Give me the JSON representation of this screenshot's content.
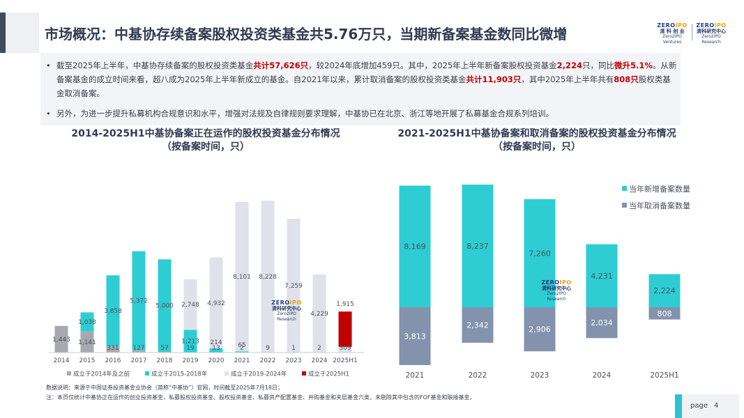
{
  "header": {
    "title": "市场概况：中基协存续备案股权投资类基金共5.76万只，当期新备案基金数同比微增",
    "logo_left": {
      "mark_a": "ZERO",
      "mark_b": "IPO",
      "cn": "清 科 创 业",
      "en": "Zero2IPO Ventures"
    },
    "logo_right": {
      "mark_a": "ZERO",
      "mark_b": "IPO",
      "cn": "清科研究中心",
      "en": "Zero2IPO Research"
    }
  },
  "summary": {
    "bullet_marker": "•",
    "p1": [
      {
        "t": "截至2025年上半年，中基协存续备案的股权投资类基金",
        "h": false
      },
      {
        "t": "共计57,626只",
        "h": true
      },
      {
        "t": "，较2024年底增加459只。其中，2025年上半年新备案股权投资基金",
        "h": false
      },
      {
        "t": "2,224",
        "h": true
      },
      {
        "t": "只，同比",
        "h": false
      },
      {
        "t": "微升5.1%",
        "h": true
      },
      {
        "t": "。从新备案基金的成立时间来看，超八成为2025年上半年新成立的基金。自2021年以来，累计取消备案的股权投资类基金",
        "h": false
      },
      {
        "t": "共计11,903只",
        "h": true
      },
      {
        "t": "，其中2025年上半年共有",
        "h": false
      },
      {
        "t": "808只",
        "h": true
      },
      {
        "t": "股权类基金取消备案。",
        "h": false
      }
    ],
    "p2": "另外，为进一步提升私募机构合规意识和水平，增强对法规及自律规则要求理解，中基协已在北京、浙江等地开展了私募基金合规系列培训。"
  },
  "chart_data": [
    {
      "type": "bar",
      "stacked": true,
      "title": "2014-2025H1中基协备案正在运作的股权投资基金分布情况",
      "subtitle": "（按备案时间，只）",
      "categories": [
        "2014",
        "2015",
        "2016",
        "2017",
        "2018",
        "2019",
        "2020",
        "2021",
        "2022",
        "2023",
        "2024",
        "2025H1"
      ],
      "series": [
        {
          "name": "成立于2014年及之前",
          "color": "#a7a9ae",
          "values": [
            1443,
            1141,
            331,
            127,
            57,
            19,
            13,
            2,
            9,
            1,
            2,
            0
          ]
        },
        {
          "name": "成立于2015-2018年",
          "color": "#2dcdd3",
          "values": [
            0,
            1038,
            3858,
            5372,
            5000,
            1213,
            214,
            65,
            0,
            0,
            0,
            0
          ]
        },
        {
          "name": "成立于2019-2024年",
          "color": "#dfe2ea",
          "values": [
            0,
            0,
            0,
            0,
            0,
            2748,
            4932,
            8101,
            8228,
            7259,
            4229,
            309
          ]
        },
        {
          "name": "成立于2025H1",
          "color": "#c00000",
          "values": [
            0,
            0,
            0,
            0,
            0,
            0,
            0,
            0,
            0,
            0,
            0,
            1915
          ]
        }
      ],
      "data_labels": [
        {
          "cat": 0,
          "s": 0,
          "text": "1,443"
        },
        {
          "cat": 1,
          "s": 0,
          "text": "1,141"
        },
        {
          "cat": 1,
          "s": 1,
          "text": "1,038"
        },
        {
          "cat": 2,
          "s": 0,
          "text": "331"
        },
        {
          "cat": 2,
          "s": 1,
          "text": "3,858"
        },
        {
          "cat": 3,
          "s": 0,
          "text": "127"
        },
        {
          "cat": 3,
          "s": 1,
          "text": "5,372"
        },
        {
          "cat": 4,
          "s": 0,
          "text": "57"
        },
        {
          "cat": 4,
          "s": 1,
          "text": "5,000"
        },
        {
          "cat": 5,
          "s": 0,
          "text": "19"
        },
        {
          "cat": 5,
          "s": 1,
          "text": "1,213"
        },
        {
          "cat": 5,
          "s": 2,
          "text": "2,748"
        },
        {
          "cat": 6,
          "s": 0,
          "text": "13"
        },
        {
          "cat": 6,
          "s": 1,
          "text": "214"
        },
        {
          "cat": 6,
          "s": 2,
          "text": "4,932"
        },
        {
          "cat": 7,
          "s": 0,
          "text": "2"
        },
        {
          "cat": 7,
          "s": 1,
          "text": "65"
        },
        {
          "cat": 7,
          "s": 2,
          "text": "8,101"
        },
        {
          "cat": 8,
          "s": 0,
          "text": "9"
        },
        {
          "cat": 8,
          "s": 2,
          "text": "8,228"
        },
        {
          "cat": 9,
          "s": 0,
          "text": "1"
        },
        {
          "cat": 9,
          "s": 2,
          "text": "7,259"
        },
        {
          "cat": 10,
          "s": 0,
          "text": "2"
        },
        {
          "cat": 10,
          "s": 2,
          "text": "4,229"
        },
        {
          "cat": 11,
          "s": 2,
          "text": "309"
        },
        {
          "cat": 11,
          "s": 3,
          "text": "1,915"
        }
      ],
      "ylim": [
        0,
        9000
      ],
      "xlabel": "",
      "ylabel": "",
      "legend_position": "bottom"
    },
    {
      "type": "bar",
      "diverging": true,
      "title": "2021-2025H1中基协备案和取消备案的股权投资基金分布情况",
      "subtitle": "（按备案时间，只）",
      "categories": [
        "2021",
        "2022",
        "2023",
        "2024",
        "2025H1"
      ],
      "series": [
        {
          "name": "当年新增备案数量",
          "color": "#2dcdd3",
          "values": [
            8169,
            8237,
            7260,
            4231,
            2224
          ]
        },
        {
          "name": "当年取消备案数量",
          "color": "#8393ad",
          "values": [
            3813,
            2342,
            2906,
            2034,
            808
          ]
        }
      ],
      "data_labels_new": [
        "8,169",
        "8,237",
        "7,260",
        "4,231",
        "2,224"
      ],
      "data_labels_cancel": [
        "3,813",
        "2,342",
        "2,906",
        "2,034",
        "808"
      ],
      "ylim": [
        -3813,
        8237
      ],
      "xlabel": "",
      "ylabel": "",
      "legend_position": "top-right"
    }
  ],
  "watermark": {
    "mark_a": "ZERO",
    "mark_b": "IPO",
    "cn": "清科研究中心",
    "en": "Zero2IPO Research"
  },
  "footnotes": {
    "source": "数据说明：来源于中国证券投资基金业协会（简称“中基协”）官网，时间截至2025年7月18日；",
    "note": "注：本页仅统计中基协正在运作的创业投资基金、私募股权投资基金、股权投资基金、私募资产配置基金、并购基金和夹层基金六类，未剔除其中包含的FOF基金和联接基金。"
  },
  "page": {
    "label": "page",
    "number": "4"
  }
}
